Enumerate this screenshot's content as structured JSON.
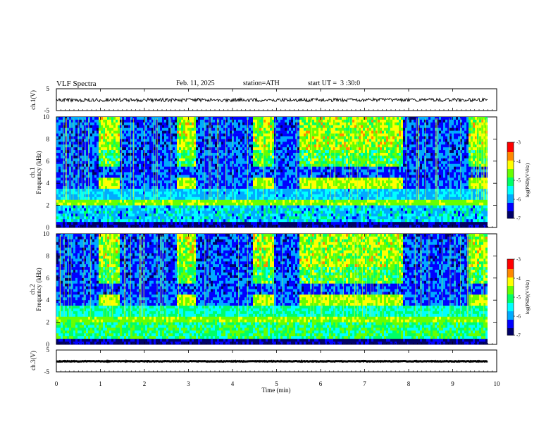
{
  "header": {
    "title": "VLF Spectra",
    "date": "Feb. 11, 2025",
    "station": "station=ATH",
    "start": "start UT =  3 :30:0"
  },
  "chart_data": {
    "type": "heatmap",
    "title": "VLF Spectra",
    "xlabel": "Time (min)",
    "xlim": [
      0,
      10
    ],
    "x_ticks": [
      "0",
      "1",
      "2",
      "3",
      "4",
      "5",
      "6",
      "7",
      "8",
      "9",
      "10"
    ],
    "panels": [
      {
        "label": "ch.1(V)",
        "kind": "line",
        "ylim": [
          -5,
          5
        ],
        "y_ticks": [
          "5",
          "-5"
        ]
      },
      {
        "label": "ch.1",
        "ylabel": "Frequency (kHz)",
        "kind": "spectrogram",
        "ylim": [
          0,
          10
        ],
        "y_ticks": [
          "0",
          "2",
          "4",
          "6",
          "8",
          "10"
        ],
        "colorbar": {
          "label": "log(PSD)(V²/Hz)",
          "range": [
            -7,
            -3
          ],
          "ticks": [
            "-3",
            "-4",
            "-5",
            "-6",
            "-7"
          ]
        }
      },
      {
        "label": "ch.2",
        "ylabel": "Frequency (kHz)",
        "kind": "spectrogram",
        "ylim": [
          0,
          10
        ],
        "y_ticks": [
          "0",
          "2",
          "4",
          "6",
          "8",
          "10"
        ],
        "colorbar": {
          "label": "log(PSD)(V²/Hz)",
          "range": [
            -7,
            -3
          ],
          "ticks": [
            "-3",
            "-4",
            "-5",
            "-6",
            "-7"
          ]
        }
      },
      {
        "label": "ch.3(V)",
        "kind": "line",
        "ylim": [
          -5,
          5
        ],
        "y_ticks": [
          "5",
          "-5"
        ]
      }
    ],
    "high_activity_intervals_min": [
      [
        0.95,
        1.4
      ],
      [
        2.7,
        3.15
      ],
      [
        4.45,
        4.9
      ],
      [
        5.5,
        7.85
      ],
      [
        9.35,
        9.8
      ]
    ],
    "data_end_min": 9.8
  },
  "colors": {
    "colormap": [
      "#000066",
      "#0000ff",
      "#00aaff",
      "#00ffff",
      "#00ff66",
      "#66ff00",
      "#ffff00",
      "#ff8800",
      "#ff0000",
      "#ffffff"
    ]
  }
}
